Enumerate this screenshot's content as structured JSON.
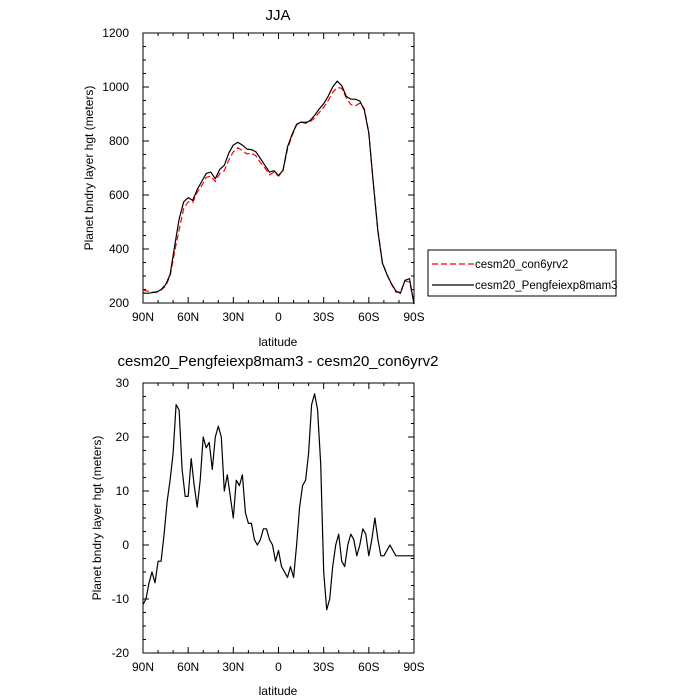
{
  "chart_data": [
    {
      "type": "line",
      "title": "JJA",
      "xlabel": "latitude",
      "ylabel": "Planet bndry layer hgt (meters)",
      "xlim": [
        90,
        -90
      ],
      "ylim": [
        200,
        1200
      ],
      "x_ticks": [
        90,
        60,
        30,
        0,
        -30,
        -60,
        -90
      ],
      "x_tick_labels": [
        "90N",
        "60N",
        "30N",
        "0",
        "30S",
        "60S",
        "90S"
      ],
      "y_ticks": [
        200,
        400,
        600,
        800,
        1000,
        1200
      ],
      "y_tick_labels": [
        "200",
        "400",
        "600",
        "800",
        "1000",
        "1200"
      ],
      "legend_position": "right",
      "series": [
        {
          "name": "cesm20_con6yrv2",
          "color": "#ff0000",
          "dash": "dashed",
          "x": [
            90,
            87,
            84,
            81,
            78,
            75,
            72,
            69,
            66,
            63,
            60,
            57,
            54,
            51,
            48,
            45,
            42,
            39,
            36,
            33,
            30,
            27,
            24,
            21,
            18,
            15,
            12,
            9,
            6,
            3,
            0,
            -3,
            -6,
            -9,
            -12,
            -15,
            -18,
            -21,
            -24,
            -27,
            -30,
            -33,
            -36,
            -39,
            -42,
            -45,
            -48,
            -51,
            -54,
            -57,
            -60,
            -63,
            -66,
            -69,
            -72,
            -75,
            -78,
            -81,
            -84,
            -87,
            -90
          ],
          "values": [
            248,
            244,
            240,
            242,
            248,
            262,
            300,
            390,
            470,
            550,
            575,
            572,
            610,
            635,
            665,
            670,
            650,
            680,
            690,
            730,
            760,
            775,
            765,
            752,
            755,
            745,
            720,
            700,
            675,
            685,
            670,
            690,
            770,
            820,
            860,
            870,
            870,
            872,
            885,
            905,
            925,
            950,
            980,
            998,
            995,
            960,
            935,
            930,
            940,
            920,
            830,
            640,
            470,
            350,
            305,
            270,
            240,
            240,
            282,
            278,
            202
          ]
        },
        {
          "name": "cesm20_Pengfeiexp8mam3",
          "color": "#000000",
          "dash": "solid",
          "x": [
            90,
            87,
            84,
            81,
            78,
            75,
            72,
            69,
            66,
            63,
            60,
            57,
            54,
            51,
            48,
            45,
            42,
            39,
            36,
            33,
            30,
            27,
            24,
            21,
            18,
            15,
            12,
            9,
            6,
            3,
            0,
            -3,
            -6,
            -9,
            -12,
            -15,
            -18,
            -21,
            -24,
            -27,
            -30,
            -33,
            -36,
            -39,
            -42,
            -45,
            -48,
            -51,
            -54,
            -57,
            -60,
            -63,
            -66,
            -69,
            -72,
            -75,
            -78,
            -81,
            -84,
            -87,
            -90
          ],
          "values": [
            237,
            236,
            238,
            240,
            250,
            268,
            305,
            410,
            510,
            575,
            590,
            580,
            620,
            650,
            680,
            685,
            660,
            695,
            710,
            755,
            785,
            795,
            785,
            770,
            768,
            760,
            735,
            710,
            685,
            690,
            672,
            692,
            778,
            825,
            862,
            870,
            866,
            876,
            895,
            918,
            938,
            966,
            1000,
            1022,
            1005,
            965,
            955,
            955,
            948,
            915,
            830,
            640,
            465,
            348,
            306,
            272,
            245,
            236,
            284,
            290,
            196
          ]
        }
      ]
    },
    {
      "type": "line",
      "title": "cesm20_Pengfeiexp8mam3 - cesm20_con6yrv2",
      "xlabel": "latitude",
      "ylabel": "Planet bndry layer hgt (meters)",
      "xlim": [
        90,
        -90
      ],
      "ylim": [
        -20,
        30
      ],
      "x_ticks": [
        90,
        60,
        30,
        0,
        -30,
        -60,
        -90
      ],
      "x_tick_labels": [
        "90N",
        "60N",
        "30N",
        "0",
        "30S",
        "60S",
        "90S"
      ],
      "y_ticks": [
        -20,
        -10,
        0,
        10,
        20,
        30
      ],
      "y_tick_labels": [
        "-20",
        "-10",
        "0",
        "10",
        "20",
        "30"
      ],
      "series": [
        {
          "color": "#000000",
          "dash": "solid",
          "x": [
            90,
            88,
            86,
            84,
            82,
            80,
            78,
            76,
            74,
            72,
            70,
            68,
            66,
            64,
            62,
            60,
            58,
            56,
            54,
            52,
            50,
            48,
            46,
            44,
            42,
            40,
            38,
            36,
            34,
            32,
            30,
            28,
            26,
            24,
            22,
            20,
            18,
            16,
            14,
            12,
            10,
            8,
            6,
            4,
            2,
            0,
            -2,
            -4,
            -6,
            -8,
            -10,
            -12,
            -14,
            -16,
            -18,
            -20,
            -22,
            -24,
            -26,
            -28,
            -30,
            -32,
            -34,
            -36,
            -38,
            -40,
            -42,
            -44,
            -46,
            -48,
            -50,
            -52,
            -54,
            -56,
            -58,
            -60,
            -62,
            -64,
            -66,
            -68,
            -70,
            -72,
            -74,
            -76,
            -78,
            -80,
            -82,
            -84,
            -86,
            -88,
            -90
          ],
          "values": [
            -11,
            -10,
            -7,
            -5,
            -7,
            -3,
            -3,
            2,
            8,
            12,
            17,
            26,
            25,
            14,
            9,
            9,
            16,
            11,
            7,
            12,
            20,
            18,
            19,
            14,
            20,
            22,
            20,
            10,
            13,
            9,
            5,
            12,
            11,
            13,
            6,
            4,
            4,
            1,
            0,
            1,
            3,
            3,
            1,
            0,
            -3,
            -1,
            -4,
            -5,
            -6,
            -4,
            -6,
            0,
            7,
            11,
            12,
            17,
            26,
            28,
            25,
            15,
            -5,
            -12,
            -10,
            -4,
            0,
            2,
            -3,
            -4,
            0,
            2,
            1,
            -2,
            0,
            3,
            2,
            -2,
            1,
            5,
            1,
            -2,
            -2,
            -1,
            0,
            -1,
            -2,
            -2,
            -2,
            -2,
            -2,
            -2,
            -2
          ]
        }
      ]
    }
  ]
}
